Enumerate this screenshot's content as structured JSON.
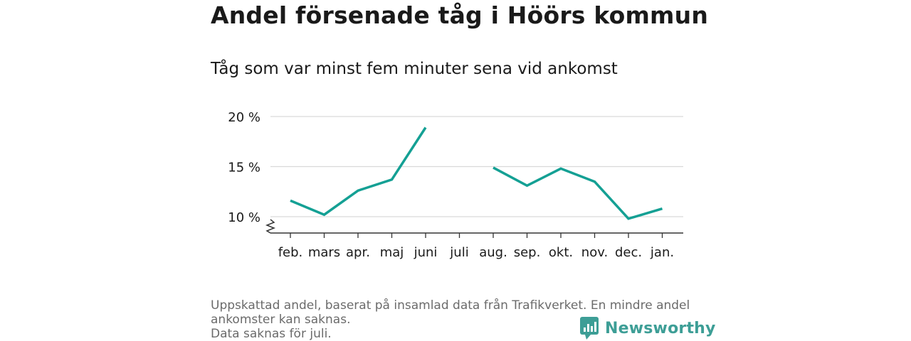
{
  "title": "Andel försenade tåg i Höörs kommun",
  "subtitle": "Tåg som var minst fem minuter sena vid ankomst",
  "footnote": {
    "line1": "Uppskattad andel, baserat på insamlad data från Trafikverket. En mindre andel ankomster kan saknas.",
    "line2": "Data saknas för juli."
  },
  "brand": {
    "name": "Newsworthy",
    "color": "#3d9e96"
  },
  "colors": {
    "line": "#14a094",
    "grid": "#d9d9d9",
    "axis": "#333333",
    "text": "#1a1a1a"
  },
  "chart_data": {
    "type": "line",
    "categories": [
      "feb.",
      "mars",
      "apr.",
      "maj",
      "juni",
      "juli",
      "aug.",
      "sep.",
      "okt.",
      "nov.",
      "dec.",
      "jan."
    ],
    "values": [
      11.6,
      10.2,
      12.6,
      13.7,
      18.9,
      null,
      14.9,
      13.1,
      14.8,
      13.5,
      9.8,
      10.8
    ],
    "yticks": [
      10,
      15,
      20
    ],
    "ytick_labels": [
      "10 %",
      "15 %",
      "20 %"
    ],
    "ylim": [
      8.4,
      20
    ],
    "axis_break": true,
    "grid": true
  }
}
